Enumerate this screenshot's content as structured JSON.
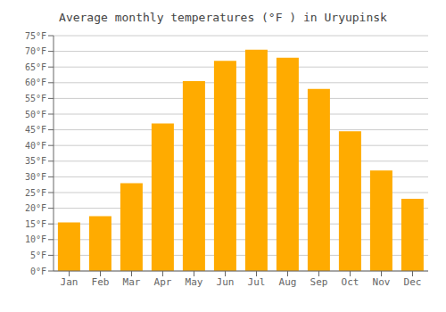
{
  "chart_data": {
    "type": "bar",
    "title": "Average monthly temperatures (°F ) in Uryupinsk",
    "categories": [
      "Jan",
      "Feb",
      "Mar",
      "Apr",
      "May",
      "Jun",
      "Jul",
      "Aug",
      "Sep",
      "Oct",
      "Nov",
      "Dec"
    ],
    "values": [
      15.5,
      17.5,
      28,
      47,
      60.5,
      67,
      70.5,
      68,
      58,
      44.5,
      32,
      23
    ],
    "color": "#FFAB00",
    "ylim": [
      0,
      75
    ],
    "yticks": [
      {
        "value": 0,
        "label": "0°F"
      },
      {
        "value": 5,
        "label": "5°F"
      },
      {
        "value": 10,
        "label": "10°F"
      },
      {
        "value": 15,
        "label": "15°F"
      },
      {
        "value": 20,
        "label": "20°F"
      },
      {
        "value": 25,
        "label": "25°F"
      },
      {
        "value": 30,
        "label": "30°F"
      },
      {
        "value": 35,
        "label": "35°F"
      },
      {
        "value": 40,
        "label": "40°F"
      },
      {
        "value": 45,
        "label": "45°F"
      },
      {
        "value": 50,
        "label": "50°F"
      },
      {
        "value": 55,
        "label": "55°F"
      },
      {
        "value": 60,
        "label": "60°F"
      },
      {
        "value": 65,
        "label": "65°F"
      },
      {
        "value": 70,
        "label": "70°F"
      },
      {
        "value": 75,
        "label": "75°F"
      }
    ],
    "grid": true
  }
}
